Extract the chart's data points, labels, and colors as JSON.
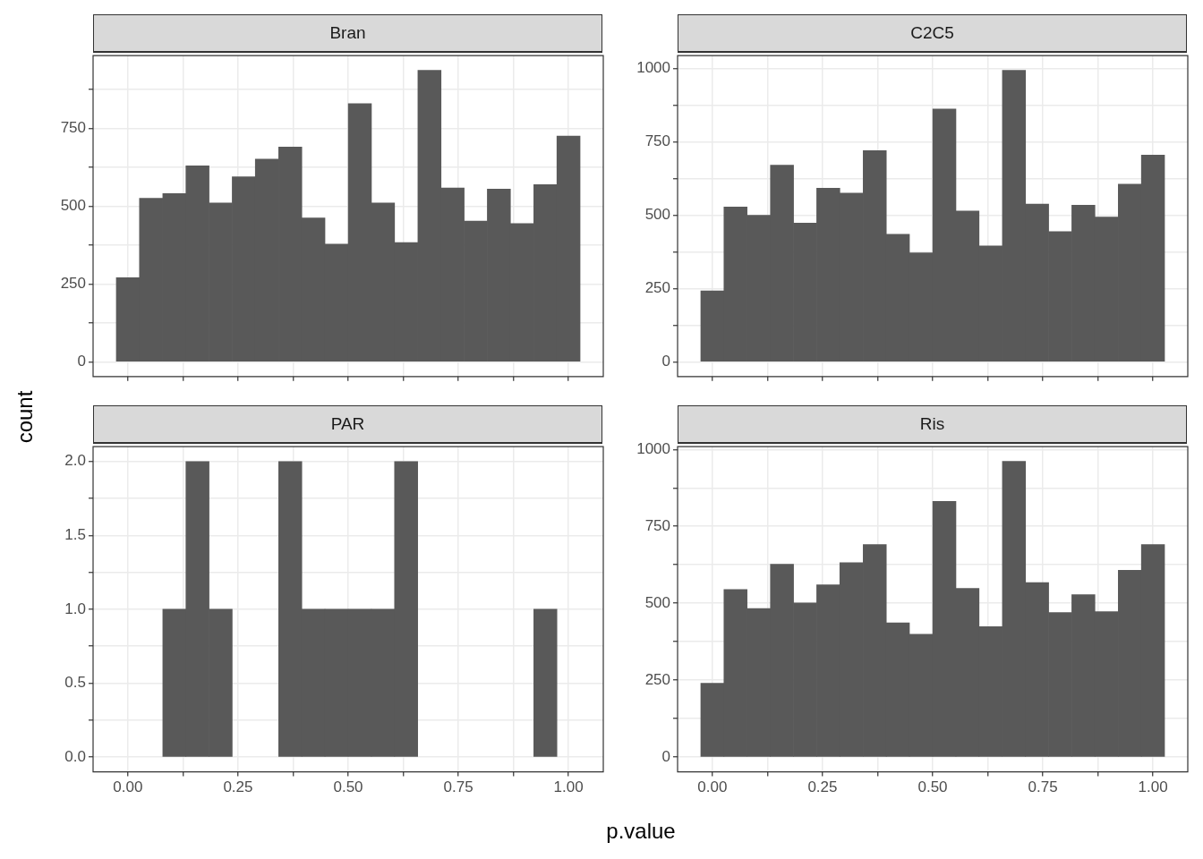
{
  "chart_data": [
    {
      "type": "histogram",
      "title": "Bran",
      "ylabel": "count",
      "color": "#595959",
      "grid": true,
      "tick_labels": "y",
      "bins": [
        -0.026,
        0.026,
        0.079,
        0.132,
        0.184,
        0.237,
        0.289,
        0.342,
        0.395,
        0.447,
        0.5,
        0.553,
        0.605,
        0.658,
        0.711,
        0.763,
        0.816,
        0.868,
        0.921,
        0.974,
        1.026
      ],
      "values": [
        270,
        525,
        540,
        629,
        510,
        594,
        651,
        690,
        462,
        378,
        829,
        510,
        383,
        936,
        558,
        452,
        555,
        444,
        569,
        725
      ],
      "xlim": [
        -0.079,
        1.079
      ],
      "ylim": [
        -47,
        983
      ],
      "xticks": [
        {
          "value": 0,
          "label": null
        },
        {
          "value": 0.125,
          "label": null
        },
        {
          "value": 0.25,
          "label": null
        },
        {
          "value": 0.375,
          "label": null
        },
        {
          "value": 0.5,
          "label": null
        },
        {
          "value": 0.625,
          "label": null
        },
        {
          "value": 0.75,
          "label": null
        },
        {
          "value": 0.875,
          "label": null
        },
        {
          "value": 1,
          "label": null
        }
      ],
      "yticks": [
        0,
        {
          "value": 125,
          "label": null
        },
        250,
        {
          "value": 375,
          "label": null
        },
        500,
        {
          "value": 625,
          "label": null
        },
        750,
        {
          "value": 875,
          "label": null
        }
      ]
    },
    {
      "type": "histogram",
      "title": "C2C5",
      "color": "#595959",
      "grid": true,
      "tick_labels": "y",
      "bins": [
        -0.026,
        0.026,
        0.079,
        0.132,
        0.184,
        0.237,
        0.289,
        0.342,
        0.395,
        0.447,
        0.5,
        0.553,
        0.605,
        0.658,
        0.711,
        0.763,
        0.816,
        0.868,
        0.921,
        0.974,
        1.026
      ],
      "values": [
        242,
        528,
        500,
        671,
        473,
        592,
        575,
        720,
        435,
        372,
        862,
        514,
        395,
        994,
        538,
        444,
        534,
        494,
        606,
        705
      ],
      "xlim": [
        -0.079,
        1.079
      ],
      "ylim": [
        -50,
        1044
      ],
      "xticks": [
        {
          "value": 0,
          "label": null
        },
        {
          "value": 0.125,
          "label": null
        },
        {
          "value": 0.25,
          "label": null
        },
        {
          "value": 0.375,
          "label": null
        },
        {
          "value": 0.5,
          "label": null
        },
        {
          "value": 0.625,
          "label": null
        },
        {
          "value": 0.75,
          "label": null
        },
        {
          "value": 0.875,
          "label": null
        },
        {
          "value": 1,
          "label": null
        }
      ],
      "yticks": [
        0,
        {
          "value": 125,
          "label": null
        },
        250,
        {
          "value": 375,
          "label": null
        },
        500,
        {
          "value": 625,
          "label": null
        },
        750,
        {
          "value": 875,
          "label": null
        },
        1000
      ]
    },
    {
      "type": "histogram",
      "title": "PAR",
      "xlabel": "p.value",
      "color": "#595959",
      "grid": true,
      "bins": [
        -0.026,
        0.026,
        0.079,
        0.132,
        0.184,
        0.237,
        0.289,
        0.342,
        0.395,
        0.447,
        0.5,
        0.553,
        0.605,
        0.658,
        0.711,
        0.763,
        0.816,
        0.868,
        0.921,
        0.974,
        1.026
      ],
      "values": [
        0,
        0,
        1,
        2,
        1,
        0,
        0,
        2,
        1,
        1,
        1,
        1,
        2,
        0,
        0,
        0,
        0,
        0,
        1,
        0
      ],
      "xlim": [
        -0.079,
        1.079
      ],
      "ylim": [
        -0.1,
        2.1
      ],
      "xticks": [
        {
          "value": 0,
          "label": "0.00"
        },
        {
          "value": 0.125,
          "label": null
        },
        {
          "value": 0.25,
          "label": "0.25"
        },
        {
          "value": 0.375,
          "label": null
        },
        {
          "value": 0.5,
          "label": "0.50"
        },
        {
          "value": 0.625,
          "label": null
        },
        {
          "value": 0.75,
          "label": "0.75"
        },
        {
          "value": 0.875,
          "label": null
        },
        {
          "value": 1,
          "label": "1.00"
        }
      ],
      "yticks": [
        {
          "value": 0,
          "label": "0.0"
        },
        {
          "value": 0.25,
          "label": null
        },
        {
          "value": 0.5,
          "label": "0.5"
        },
        {
          "value": 0.75,
          "label": null
        },
        {
          "value": 1,
          "label": "1.0"
        },
        {
          "value": 1.25,
          "label": null
        },
        {
          "value": 1.5,
          "label": "1.5"
        },
        {
          "value": 1.75,
          "label": null
        },
        {
          "value": 2,
          "label": "2.0"
        }
      ]
    },
    {
      "type": "histogram",
      "title": "Ris",
      "color": "#595959",
      "grid": true,
      "bins": [
        -0.026,
        0.026,
        0.079,
        0.132,
        0.184,
        0.237,
        0.289,
        0.342,
        0.395,
        0.447,
        0.5,
        0.553,
        0.605,
        0.658,
        0.711,
        0.763,
        0.816,
        0.868,
        0.921,
        0.974,
        1.026
      ],
      "values": [
        240,
        545,
        483,
        627,
        501,
        560,
        632,
        691,
        436,
        399,
        831,
        548,
        424,
        961,
        567,
        470,
        528,
        473,
        607,
        691
      ],
      "xlim": [
        -0.079,
        1.079
      ],
      "ylim": [
        -48,
        1009
      ],
      "xticks": [
        {
          "value": 0,
          "label": "0.00"
        },
        {
          "value": 0.125,
          "label": null
        },
        {
          "value": 0.25,
          "label": "0.25"
        },
        {
          "value": 0.375,
          "label": null
        },
        {
          "value": 0.5,
          "label": "0.50"
        },
        {
          "value": 0.625,
          "label": null
        },
        {
          "value": 0.75,
          "label": "0.75"
        },
        {
          "value": 0.875,
          "label": null
        },
        {
          "value": 1,
          "label": "1.00"
        }
      ],
      "yticks": [
        0,
        {
          "value": 125,
          "label": null
        },
        250,
        {
          "value": 375,
          "label": null
        },
        500,
        {
          "value": 625,
          "label": null
        },
        750,
        {
          "value": 875,
          "label": null
        },
        1000
      ]
    }
  ]
}
